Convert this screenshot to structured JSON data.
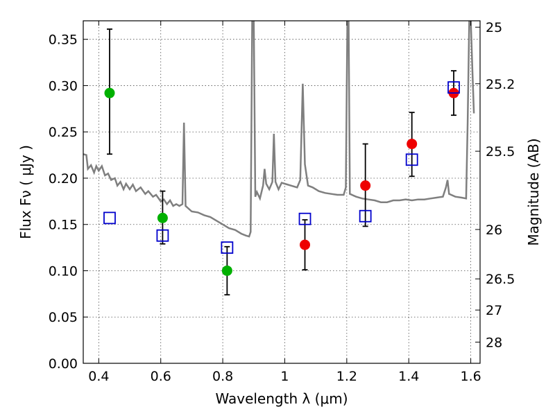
{
  "chart_data": {
    "type": "scatter",
    "xlabel": "Wavelength  λ (μm)",
    "ylabel": "Flux  Fν  ( μJy )",
    "y2label": "Magnitude (AB)",
    "xlim": [
      0.35,
      1.63
    ],
    "ylim": [
      0.0,
      0.37
    ],
    "grid": true,
    "x_ticks": [
      {
        "value": 0.4,
        "label": "0.4"
      },
      {
        "value": 0.6,
        "label": "0.6"
      },
      {
        "value": 0.8,
        "label": "0.8"
      },
      {
        "value": 1.0,
        "label": "1"
      },
      {
        "value": 1.2,
        "label": "1.2"
      },
      {
        "value": 1.4,
        "label": "1.4"
      },
      {
        "value": 1.6,
        "label": "1.6"
      }
    ],
    "y_ticks": [
      {
        "value": 0.0,
        "label": "0.00"
      },
      {
        "value": 0.05,
        "label": "0.05"
      },
      {
        "value": 0.1,
        "label": "0.10"
      },
      {
        "value": 0.15,
        "label": "0.15"
      },
      {
        "value": 0.2,
        "label": "0.20"
      },
      {
        "value": 0.25,
        "label": "0.25"
      },
      {
        "value": 0.3,
        "label": "0.30"
      },
      {
        "value": 0.35,
        "label": "0.35"
      }
    ],
    "y2_ticks": [
      {
        "value": 25,
        "label": "25"
      },
      {
        "value": 25.2,
        "label": "25.2"
      },
      {
        "value": 25.5,
        "label": "25.5"
      },
      {
        "value": 26,
        "label": "26"
      },
      {
        "value": 26.5,
        "label": "26.5"
      },
      {
        "value": 27,
        "label": "27"
      },
      {
        "value": 28,
        "label": "28"
      }
    ],
    "series": [
      {
        "color": "#00b000",
        "marker": "circle",
        "points": [
          {
            "x": 0.435,
            "y": 0.292,
            "yerr_low": 0.226,
            "yerr_high": 0.361
          },
          {
            "x": 0.606,
            "y": 0.157,
            "yerr_low": 0.129,
            "yerr_high": 0.186
          },
          {
            "x": 0.814,
            "y": 0.1,
            "yerr_low": 0.074,
            "yerr_high": 0.126
          }
        ]
      },
      {
        "color": "#ee0000",
        "marker": "circle",
        "points": [
          {
            "x": 1.065,
            "y": 0.128,
            "yerr_low": 0.101,
            "yerr_high": 0.155
          },
          {
            "x": 1.26,
            "y": 0.192,
            "yerr_low": 0.148,
            "yerr_high": 0.237
          },
          {
            "x": 1.41,
            "y": 0.237,
            "yerr_low": 0.202,
            "yerr_high": 0.271
          },
          {
            "x": 1.545,
            "y": 0.292,
            "yerr_low": 0.268,
            "yerr_high": 0.316
          }
        ]
      },
      {
        "color": "#0000cc",
        "marker": "open-square",
        "points": [
          {
            "x": 0.435,
            "y": 0.157
          },
          {
            "x": 0.606,
            "y": 0.138
          },
          {
            "x": 0.814,
            "y": 0.125
          },
          {
            "x": 1.065,
            "y": 0.156
          },
          {
            "x": 1.26,
            "y": 0.159
          },
          {
            "x": 1.41,
            "y": 0.22
          },
          {
            "x": 1.545,
            "y": 0.298
          }
        ]
      },
      {
        "color": "#7f7f7f",
        "marker": "line",
        "points": [
          [
            0.35,
            0.226
          ],
          [
            0.36,
            0.225
          ],
          [
            0.365,
            0.21
          ],
          [
            0.375,
            0.214
          ],
          [
            0.385,
            0.206
          ],
          [
            0.392,
            0.213
          ],
          [
            0.4,
            0.208
          ],
          [
            0.41,
            0.213
          ],
          [
            0.42,
            0.203
          ],
          [
            0.43,
            0.205
          ],
          [
            0.44,
            0.198
          ],
          [
            0.452,
            0.2
          ],
          [
            0.46,
            0.192
          ],
          [
            0.47,
            0.196
          ],
          [
            0.48,
            0.188
          ],
          [
            0.488,
            0.194
          ],
          [
            0.5,
            0.188
          ],
          [
            0.51,
            0.193
          ],
          [
            0.52,
            0.186
          ],
          [
            0.535,
            0.19
          ],
          [
            0.55,
            0.183
          ],
          [
            0.56,
            0.186
          ],
          [
            0.575,
            0.18
          ],
          [
            0.585,
            0.182
          ],
          [
            0.6,
            0.175
          ],
          [
            0.61,
            0.177
          ],
          [
            0.62,
            0.172
          ],
          [
            0.63,
            0.176
          ],
          [
            0.64,
            0.17
          ],
          [
            0.65,
            0.172
          ],
          [
            0.66,
            0.17
          ],
          [
            0.67,
            0.172
          ],
          [
            0.675,
            0.26
          ],
          [
            0.68,
            0.17
          ],
          [
            0.69,
            0.167
          ],
          [
            0.7,
            0.164
          ],
          [
            0.72,
            0.163
          ],
          [
            0.74,
            0.16
          ],
          [
            0.76,
            0.158
          ],
          [
            0.78,
            0.154
          ],
          [
            0.8,
            0.15
          ],
          [
            0.82,
            0.146
          ],
          [
            0.84,
            0.144
          ],
          [
            0.86,
            0.14
          ],
          [
            0.875,
            0.138
          ],
          [
            0.885,
            0.137
          ],
          [
            0.89,
            0.142
          ],
          [
            0.895,
            0.37
          ],
          [
            0.9,
            0.37
          ],
          [
            0.905,
            0.18
          ],
          [
            0.91,
            0.185
          ],
          [
            0.92,
            0.178
          ],
          [
            0.93,
            0.192
          ],
          [
            0.935,
            0.21
          ],
          [
            0.94,
            0.194
          ],
          [
            0.95,
            0.188
          ],
          [
            0.96,
            0.196
          ],
          [
            0.965,
            0.248
          ],
          [
            0.97,
            0.196
          ],
          [
            0.98,
            0.188
          ],
          [
            0.99,
            0.195
          ],
          [
            1.0,
            0.194
          ],
          [
            1.02,
            0.192
          ],
          [
            1.04,
            0.19
          ],
          [
            1.05,
            0.198
          ],
          [
            1.058,
            0.302
          ],
          [
            1.065,
            0.215
          ],
          [
            1.075,
            0.192
          ],
          [
            1.09,
            0.19
          ],
          [
            1.11,
            0.186
          ],
          [
            1.13,
            0.184
          ],
          [
            1.15,
            0.183
          ],
          [
            1.17,
            0.182
          ],
          [
            1.19,
            0.182
          ],
          [
            1.197,
            0.19
          ],
          [
            1.202,
            0.37
          ],
          [
            1.206,
            0.37
          ],
          [
            1.21,
            0.183
          ],
          [
            1.23,
            0.18
          ],
          [
            1.25,
            0.178
          ],
          [
            1.27,
            0.177
          ],
          [
            1.29,
            0.176
          ],
          [
            1.31,
            0.174
          ],
          [
            1.33,
            0.174
          ],
          [
            1.35,
            0.176
          ],
          [
            1.37,
            0.176
          ],
          [
            1.39,
            0.177
          ],
          [
            1.41,
            0.176
          ],
          [
            1.43,
            0.177
          ],
          [
            1.45,
            0.177
          ],
          [
            1.47,
            0.178
          ],
          [
            1.49,
            0.179
          ],
          [
            1.51,
            0.18
          ],
          [
            1.52,
            0.19
          ],
          [
            1.525,
            0.198
          ],
          [
            1.53,
            0.183
          ],
          [
            1.55,
            0.18
          ],
          [
            1.57,
            0.179
          ],
          [
            1.585,
            0.178
          ],
          [
            1.59,
            0.26
          ],
          [
            1.595,
            0.37
          ],
          [
            1.6,
            0.37
          ],
          [
            1.605,
            0.32
          ],
          [
            1.61,
            0.27
          ]
        ]
      }
    ]
  }
}
